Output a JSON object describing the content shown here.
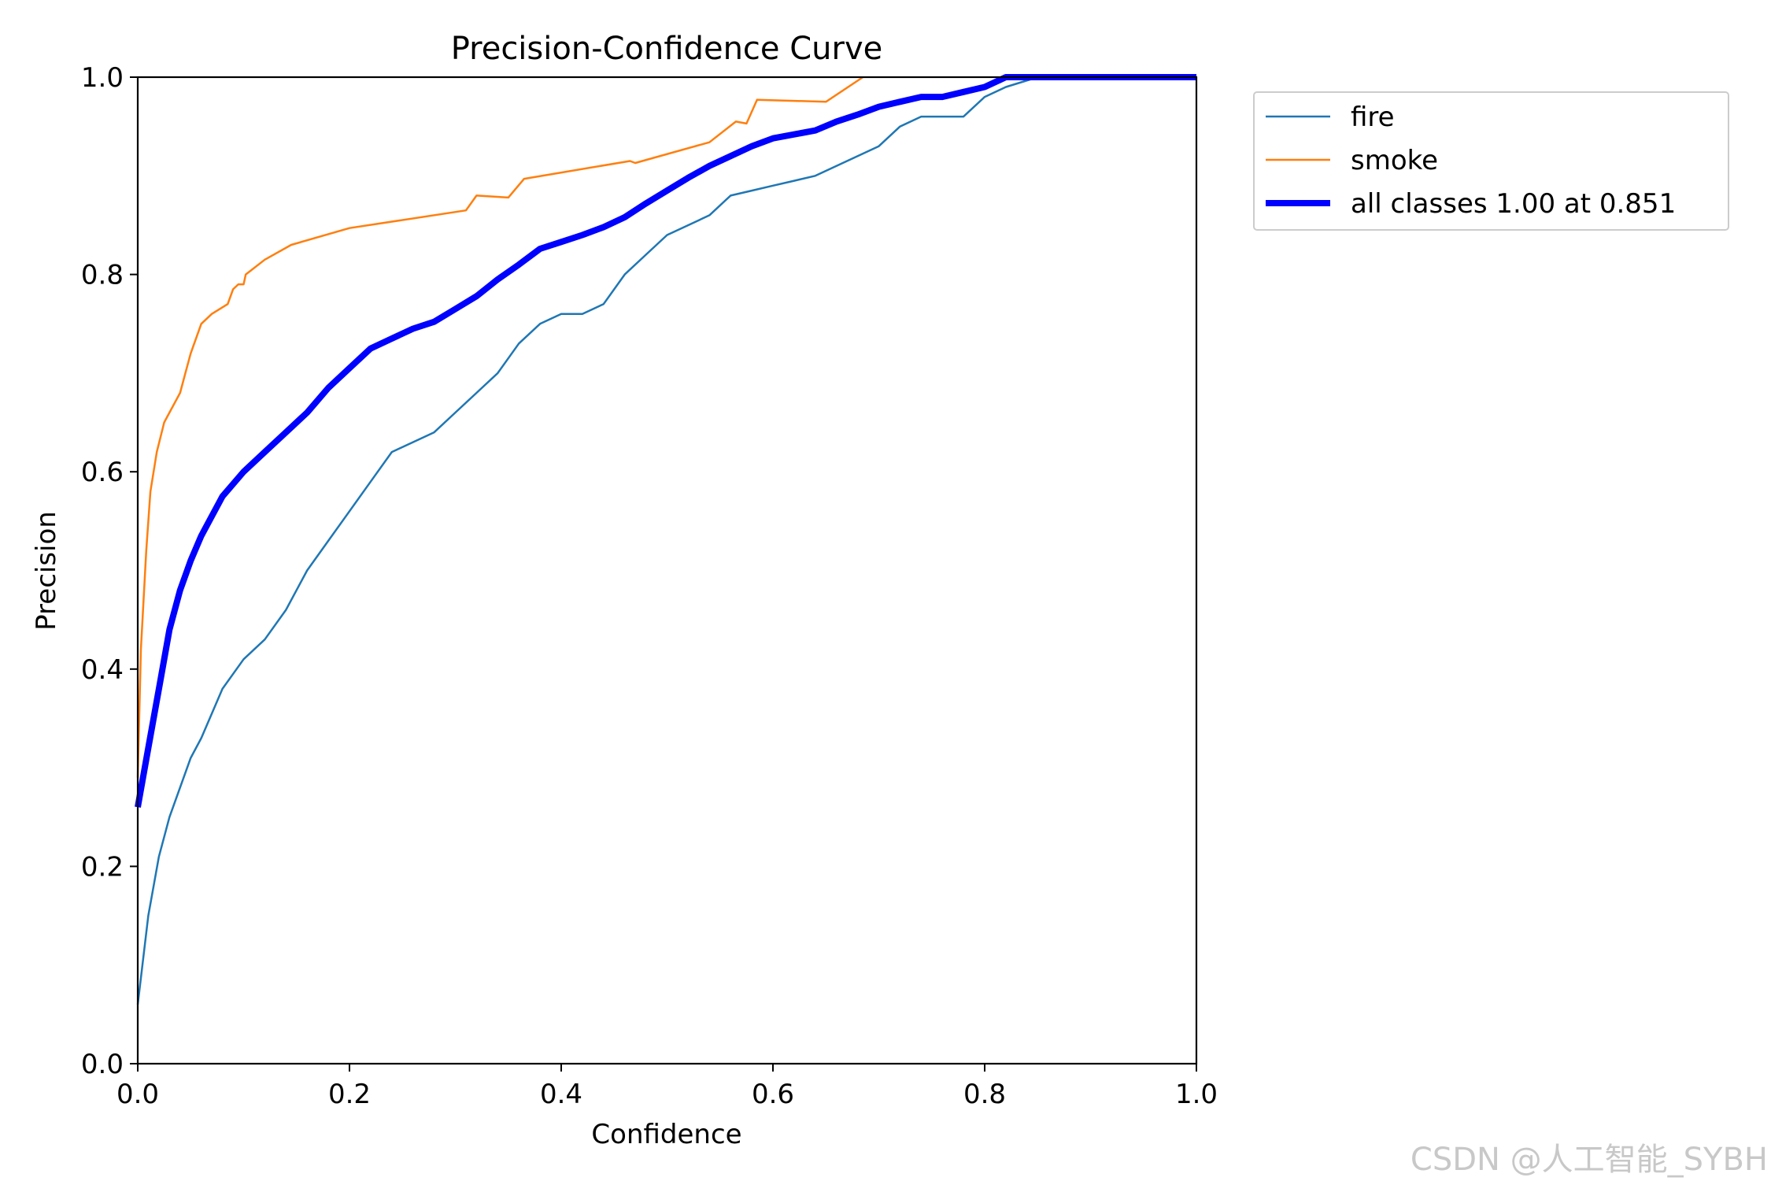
{
  "chart_data": {
    "type": "line",
    "title": "Precision-Confidence Curve",
    "xlabel": "Confidence",
    "ylabel": "Precision",
    "xlim": [
      0,
      1
    ],
    "ylim": [
      0,
      1
    ],
    "xticks": [
      "0.0",
      "0.2",
      "0.4",
      "0.6",
      "0.8",
      "1.0"
    ],
    "yticks": [
      "0.0",
      "0.2",
      "0.4",
      "0.6",
      "0.8",
      "1.0"
    ],
    "grid": false,
    "legend_position": "outside-top-right",
    "series": [
      {
        "name": "fire",
        "color": "#1f77b4",
        "x": [
          0.0,
          0.01,
          0.02,
          0.03,
          0.04,
          0.05,
          0.06,
          0.08,
          0.1,
          0.12,
          0.14,
          0.16,
          0.18,
          0.2,
          0.22,
          0.24,
          0.26,
          0.28,
          0.3,
          0.32,
          0.34,
          0.36,
          0.38,
          0.4,
          0.42,
          0.44,
          0.46,
          0.48,
          0.5,
          0.52,
          0.54,
          0.56,
          0.58,
          0.6,
          0.62,
          0.64,
          0.66,
          0.68,
          0.7,
          0.72,
          0.74,
          0.76,
          0.78,
          0.8,
          0.82,
          0.85,
          0.9,
          1.0
        ],
        "y": [
          0.06,
          0.15,
          0.21,
          0.25,
          0.28,
          0.31,
          0.33,
          0.38,
          0.41,
          0.43,
          0.46,
          0.5,
          0.53,
          0.56,
          0.59,
          0.62,
          0.63,
          0.64,
          0.66,
          0.68,
          0.7,
          0.73,
          0.75,
          0.76,
          0.76,
          0.77,
          0.8,
          0.82,
          0.84,
          0.85,
          0.86,
          0.88,
          0.885,
          0.89,
          0.895,
          0.9,
          0.91,
          0.92,
          0.93,
          0.95,
          0.96,
          0.96,
          0.96,
          0.98,
          0.99,
          1.0,
          1.0,
          1.0
        ]
      },
      {
        "name": "smoke",
        "color": "#ff7f0e",
        "x": [
          0.0,
          0.003,
          0.008,
          0.012,
          0.018,
          0.025,
          0.03,
          0.04,
          0.045,
          0.05,
          0.06,
          0.07,
          0.085,
          0.09,
          0.095,
          0.1,
          0.102,
          0.12,
          0.145,
          0.2,
          0.31,
          0.32,
          0.35,
          0.365,
          0.465,
          0.47,
          0.54,
          0.565,
          0.575,
          0.585,
          0.62,
          0.65,
          0.685
        ],
        "y": [
          0.29,
          0.42,
          0.52,
          0.58,
          0.62,
          0.65,
          0.66,
          0.68,
          0.7,
          0.72,
          0.75,
          0.76,
          0.77,
          0.785,
          0.79,
          0.79,
          0.8,
          0.815,
          0.83,
          0.847,
          0.865,
          0.88,
          0.878,
          0.897,
          0.915,
          0.913,
          0.934,
          0.955,
          0.953,
          0.977,
          0.976,
          0.975,
          1.0
        ]
      },
      {
        "name": "all classes 1.00 at 0.851",
        "color": "#0000ff",
        "x": [
          0.0,
          0.01,
          0.02,
          0.03,
          0.04,
          0.05,
          0.06,
          0.08,
          0.1,
          0.12,
          0.14,
          0.16,
          0.18,
          0.2,
          0.22,
          0.24,
          0.26,
          0.28,
          0.3,
          0.32,
          0.34,
          0.36,
          0.38,
          0.4,
          0.42,
          0.44,
          0.46,
          0.48,
          0.5,
          0.52,
          0.54,
          0.56,
          0.58,
          0.6,
          0.62,
          0.64,
          0.66,
          0.68,
          0.7,
          0.72,
          0.74,
          0.76,
          0.78,
          0.8,
          0.82,
          0.85,
          0.9,
          1.0
        ],
        "y": [
          0.26,
          0.32,
          0.38,
          0.44,
          0.48,
          0.51,
          0.535,
          0.575,
          0.6,
          0.62,
          0.64,
          0.66,
          0.685,
          0.705,
          0.725,
          0.735,
          0.745,
          0.752,
          0.765,
          0.778,
          0.795,
          0.81,
          0.826,
          0.833,
          0.84,
          0.848,
          0.858,
          0.872,
          0.885,
          0.898,
          0.91,
          0.92,
          0.93,
          0.938,
          0.942,
          0.946,
          0.955,
          0.962,
          0.97,
          0.975,
          0.98,
          0.98,
          0.985,
          0.99,
          1.0,
          1.0,
          1.0,
          1.0
        ]
      }
    ]
  },
  "watermark": "CSDN @人工智能_SYBH"
}
